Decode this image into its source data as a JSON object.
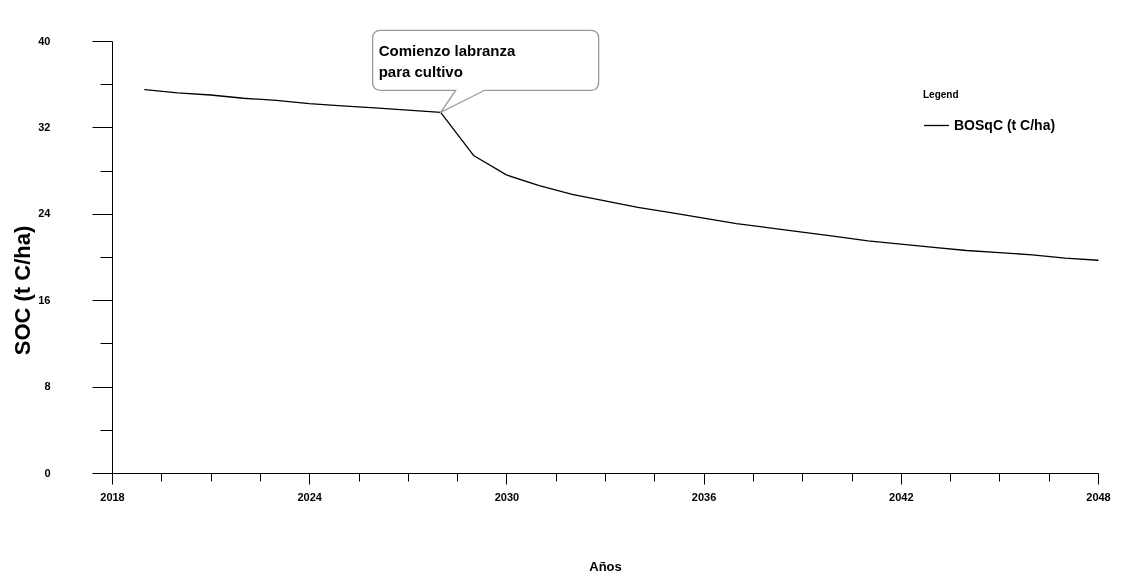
{
  "chart_data": {
    "type": "line",
    "xlabel": "Años",
    "ylabel": "SOC (t C/ha)",
    "legend_title": "Legend",
    "x": [
      2019,
      2020,
      2021,
      2022,
      2023,
      2024,
      2025,
      2026,
      2027,
      2028,
      2029,
      2030,
      2031,
      2032,
      2033,
      2034,
      2035,
      2036,
      2037,
      2038,
      2039,
      2040,
      2041,
      2042,
      2043,
      2044,
      2045,
      2046,
      2047,
      2048
    ],
    "series": [
      {
        "name": "BOSqC (t C/ha)",
        "color": "#000000",
        "values": [
          35.5,
          35.2,
          35.0,
          34.7,
          34.5,
          34.2,
          34.0,
          33.8,
          33.6,
          33.4,
          29.4,
          27.6,
          26.6,
          25.8,
          25.2,
          24.6,
          24.1,
          23.6,
          23.1,
          22.7,
          22.3,
          21.9,
          21.5,
          21.2,
          20.9,
          20.6,
          20.4,
          20.2,
          19.9,
          19.7
        ]
      }
    ],
    "xlim": [
      2018,
      2048
    ],
    "xticks": [
      2018,
      {
        "value": 2019.5,
        "label": null
      },
      {
        "value": 2021,
        "label": null
      },
      {
        "value": 2022.5,
        "label": null
      },
      2024,
      {
        "value": 2025.5,
        "label": null
      },
      {
        "value": 2027,
        "label": null
      },
      {
        "value": 2028.5,
        "label": null
      },
      2030,
      {
        "value": 2031.5,
        "label": null
      },
      {
        "value": 2033,
        "label": null
      },
      {
        "value": 2034.5,
        "label": null
      },
      2036,
      {
        "value": 2037.5,
        "label": null
      },
      {
        "value": 2039,
        "label": null
      },
      {
        "value": 2040.5,
        "label": null
      },
      2042,
      {
        "value": 2043.5,
        "label": null
      },
      {
        "value": 2045,
        "label": null
      },
      {
        "value": 2046.5,
        "label": null
      },
      2048
    ],
    "ylim": [
      0,
      40
    ],
    "yticks": [
      0,
      {
        "value": 4,
        "label": null
      },
      8,
      {
        "value": 12,
        "label": null
      },
      16,
      {
        "value": 20,
        "label": null
      },
      24,
      {
        "value": 28,
        "label": null
      },
      32,
      {
        "value": 36,
        "label": null
      },
      40
    ],
    "annotations": [
      {
        "text": "Comienzo labranza\npara cultivo",
        "x": 2028,
        "y": 33.4
      }
    ],
    "grid": false,
    "legend": "top right",
    "line_style": "solid"
  }
}
